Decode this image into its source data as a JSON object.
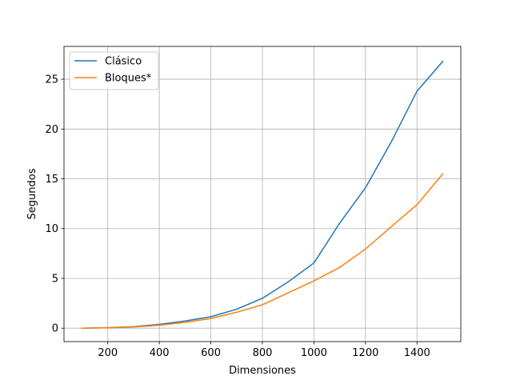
{
  "chart_data": {
    "type": "line",
    "title": "",
    "xlabel": "Dimensiones",
    "ylabel": "Segundos",
    "xlim": [
      30,
      1570
    ],
    "ylim": [
      -1.35,
      28.3
    ],
    "xticks": [
      200,
      400,
      600,
      800,
      1000,
      1200,
      1400
    ],
    "yticks": [
      0,
      5,
      10,
      15,
      20,
      25
    ],
    "grid": true,
    "legend_position": "top-left",
    "x": [
      100,
      200,
      300,
      400,
      500,
      600,
      700,
      800,
      900,
      1000,
      1100,
      1200,
      1300,
      1400,
      1500
    ],
    "series": [
      {
        "name": "Clásico",
        "color": "#1f77b4",
        "values": [
          0.0,
          0.05,
          0.15,
          0.38,
          0.72,
          1.15,
          1.9,
          3.0,
          4.65,
          6.55,
          10.55,
          14.1,
          18.7,
          23.8,
          26.8
        ]
      },
      {
        "name": "Bloques*",
        "color": "#ff7f0e",
        "values": [
          0.0,
          0.04,
          0.12,
          0.3,
          0.58,
          0.97,
          1.6,
          2.35,
          3.55,
          4.75,
          6.1,
          7.95,
          10.2,
          12.4,
          15.5
        ]
      }
    ]
  }
}
